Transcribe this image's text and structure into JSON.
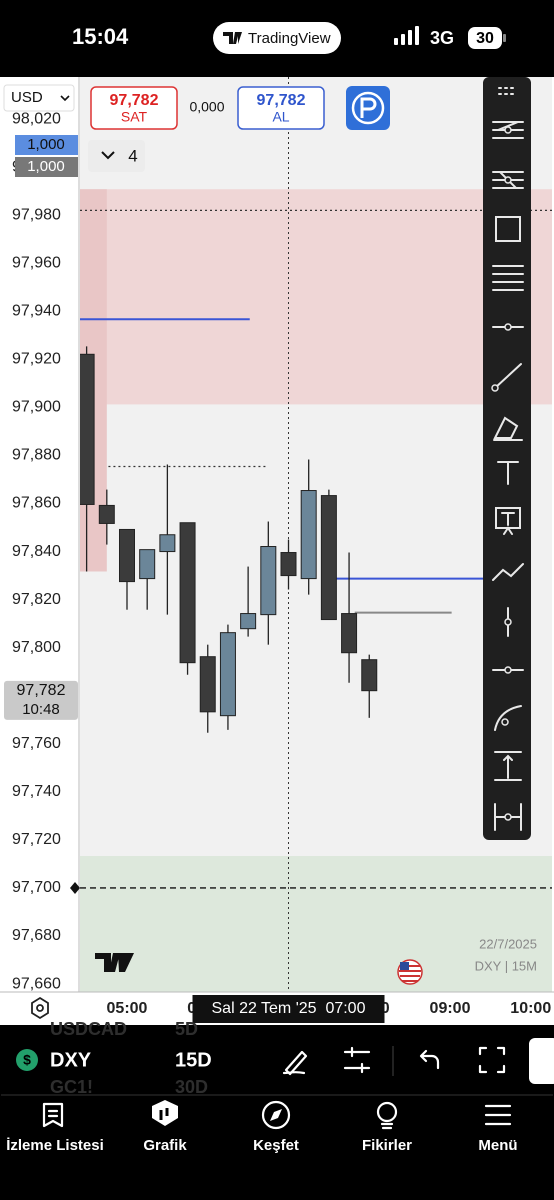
{
  "status_bar": {
    "time": "15:04",
    "app": "TradingView",
    "network": "3G",
    "battery": "30"
  },
  "toolbar": {
    "currency": "USD",
    "sell": {
      "price": "97,782",
      "label": "SAT"
    },
    "spread": "0,000",
    "buy": {
      "price": "97,782",
      "label": "AL"
    },
    "layers": "4"
  },
  "chart_data": {
    "type": "candlestick",
    "x": [
      4.5,
      4.75,
      5.0,
      5.25,
      5.5,
      5.75,
      6.0,
      6.25,
      6.5,
      6.75,
      7.0,
      7.25,
      7.5,
      7.75,
      8.0
    ],
    "open": [
      97922.1,
      97859.2,
      97849.2,
      97828.75,
      97840.0,
      97852.0,
      97796.25,
      97771.7,
      97807.9,
      97813.75,
      97839.6,
      97828.75,
      97863.3,
      97814.2,
      97795.0
    ],
    "high": [
      97925.4,
      97865.8,
      97849.2,
      97840.8,
      97876.25,
      97852.0,
      97801.25,
      97809.6,
      97833.75,
      97852.5,
      97845.0,
      97878.3,
      97865.8,
      97839.6,
      97797.1
    ],
    "low": [
      97831.7,
      97842.9,
      97815.8,
      97815.8,
      97813.75,
      97788.75,
      97764.6,
      97765.8,
      97804.6,
      97801.25,
      97824.2,
      97822.1,
      97811.7,
      97785.4,
      97770.8
    ],
    "close": [
      97859.6,
      97851.7,
      97827.5,
      97840.8,
      97847.0,
      97793.75,
      97773.3,
      97806.25,
      97814.2,
      97842.1,
      97830.0,
      97865.4,
      97811.7,
      97797.9,
      97782.1
    ],
    "up_color": "#6b8699",
    "down_color": "#3b3b3b",
    "xlim": [
      4.418,
      10.263
    ],
    "xticks": [
      {
        "value": 5,
        "label": "05:00"
      },
      {
        "value": 6,
        "label": "06:00"
      },
      {
        "value": 7,
        "label": "07:00"
      },
      {
        "value": 8,
        "label": "08:00"
      },
      {
        "value": 9,
        "label": "09:00"
      },
      {
        "value": 10,
        "label": "10:00"
      }
    ],
    "ylim": [
      97656.7,
      98037.5
    ],
    "yticks": [
      {
        "value": 98020,
        "label": "98,020"
      },
      {
        "value": 98000,
        "label": "98,000"
      },
      {
        "value": 97980,
        "label": "97,980"
      },
      {
        "value": 97960,
        "label": "97,960"
      },
      {
        "value": 97940,
        "label": "97,940"
      },
      {
        "value": 97920,
        "label": "97,920"
      },
      {
        "value": 97900,
        "label": "97,900"
      },
      {
        "value": 97880,
        "label": "97,880"
      },
      {
        "value": 97860,
        "label": "97,860"
      },
      {
        "value": 97840,
        "label": "97,840"
      },
      {
        "value": 97820,
        "label": "97,820"
      },
      {
        "value": 97800,
        "label": "97,800"
      },
      {
        "value": 97780,
        "label": "97,780"
      },
      {
        "value": 97760,
        "label": "97,760"
      },
      {
        "value": 97740,
        "label": "97,740"
      },
      {
        "value": 97720,
        "label": "97,720"
      },
      {
        "value": 97700,
        "label": "97,700"
      },
      {
        "value": 97680,
        "label": "97,680"
      },
      {
        "value": 97660,
        "label": "97,660"
      }
    ],
    "zones": [
      {
        "top": 97990.8,
        "bottom": 97901.25,
        "start": 4.418,
        "end": 10.263,
        "color": "#efd6d6"
      },
      {
        "top": 97990.8,
        "bottom": 97831.7,
        "start": 4.418,
        "end": 4.75,
        "color": "#e9c6c6"
      },
      {
        "top": 97713.3,
        "bottom": 97656.7,
        "start": 4.418,
        "end": 10.263,
        "color": "#dde8dc"
      }
    ],
    "lines": [
      {
        "y": 97982,
        "start": 4.418,
        "end": 10.263,
        "color": "#333333",
        "style": "dotted"
      },
      {
        "y": 97936.7,
        "start": 4.418,
        "end": 6.52,
        "color": "#3a55d6",
        "style": "solid"
      },
      {
        "y": 97875.4,
        "start": 4.77,
        "end": 6.75,
        "color": "#333333",
        "style": "dotted"
      },
      {
        "y": 97828.75,
        "start": 7.57,
        "end": 9.43,
        "color": "#3a55d6",
        "style": "solid"
      },
      {
        "y": 97814.6,
        "start": 7.82,
        "end": 9.02,
        "color": "#888888",
        "style": "solid"
      },
      {
        "y": 97700,
        "start": 4.418,
        "end": 10.263,
        "color": "#111111",
        "style": "dashed"
      }
    ],
    "crosshair": {
      "x": 7.0,
      "label": "Sal 22 Tem '25  07:00"
    },
    "quantity_labels": [
      "1,000",
      "1,000"
    ],
    "last_price": {
      "value": 97782,
      "label": "97,782",
      "countdown": "10:48"
    },
    "watermark": {
      "date": "22/7/2025",
      "symbol_interval": "DXY | 15M"
    }
  },
  "bottom_bar": {
    "symbol": "DXY",
    "interval": "15D",
    "currency_icon": "$",
    "ghost_rows": [
      [
        "USDCAD",
        "5D"
      ],
      [
        "GC1!",
        "30D"
      ]
    ]
  },
  "tabs": [
    "İzleme Listesi",
    "Grafik",
    "Keşfet",
    "Fikirler",
    "Menü"
  ]
}
